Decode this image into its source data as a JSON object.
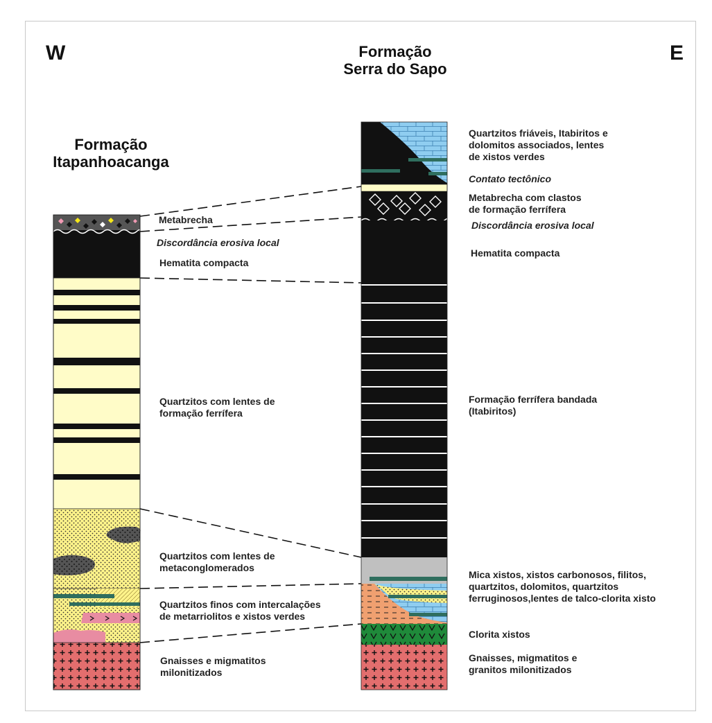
{
  "directions": {
    "west": "W",
    "east": "E"
  },
  "formations": {
    "west": "Formação\nItapanhoacanga",
    "east": "Formação\nSerra do Sapo"
  },
  "west_labels": {
    "metabrecha": "Metabrecha",
    "discordancia": "Discordância erosiva local",
    "hematita": "Hematita compacta",
    "quartzitos_ff": "Quartzitos com lentes de\nformação ferrífera",
    "quartzitos_meta": "Quartzitos com lentes de\nmetaconglomerados",
    "quartzitos_finos": "Quartzitos finos com intercalações\nde metarriolitos e xistos verdes",
    "gnaisses": "Gnaisses e migmatitos\nmilonitizados"
  },
  "east_labels": {
    "quartzitos_friaveis": "Quartzitos friáveis, Itabiritos e\ndolomitos associados, lentes\nde xistos verdes",
    "contato": "Contato tectônico",
    "metabrecha": "Metabrecha com clastos\nde formação ferrífera",
    "discordancia": "Discordância erosiva local",
    "hematita": "Hematita compacta",
    "formacao_bandada": "Formação ferrífera bandada\n(Itabiritos)",
    "mica_xistos": "Mica xistos, xistos carbonosos, filitos,\nquartzitos, dolomitos, quartzitos\nferruginosos,lentes de talco-clorita xisto",
    "clorita": "Clorita xistos",
    "gnaisses": "Gnaisses, migmatitos e\ngranitos milonitizados"
  },
  "colors": {
    "quartzite": "#fffcc8",
    "iron": "#111111",
    "dolomite": "#8fcdf0",
    "greenschist": "#2f6e5e",
    "gneiss": "#e36e6e",
    "chlorite": "#1f8a3a",
    "mica": "#f0a070",
    "breccia": "#555555",
    "grey_layer": "#c0c0c0"
  }
}
